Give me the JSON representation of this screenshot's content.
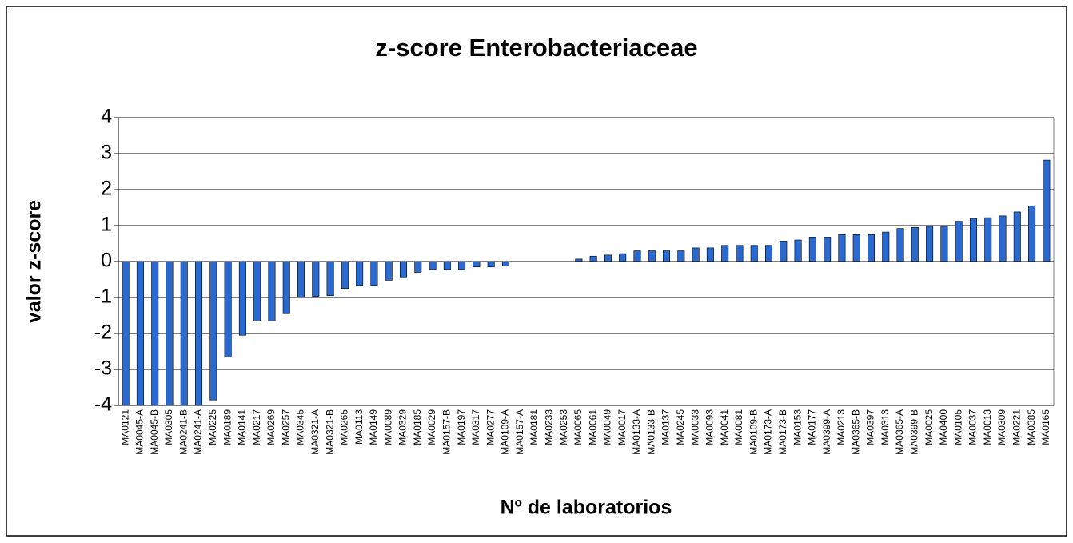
{
  "chart_data": {
    "type": "bar",
    "title": "z-score Enterobacteriaceae",
    "xlabel": "Nº de laboratorios",
    "ylabel": "valor z-score",
    "categories": [
      "MA0121",
      "MA0045-A",
      "MA0045-B",
      "MA0305",
      "MA0241-B",
      "MA0241-A",
      "MA0225",
      "MA0189",
      "MA0141",
      "MA0217",
      "MA0269",
      "MA0257",
      "MA0345",
      "MA0321-A",
      "MA0321-B",
      "MA0265",
      "MA0113",
      "MA0149",
      "MA0089",
      "MA0329",
      "MA0185",
      "MA0029",
      "MA0157-B",
      "MA0197",
      "MA0317",
      "MA0277",
      "MA0109-A",
      "MA0157-A",
      "MA0181",
      "MA0233",
      "MA0253",
      "MA0065",
      "MA0061",
      "MA0049",
      "MA0017",
      "MA0133-A",
      "MA0133-B",
      "MA0137",
      "MA0245",
      "MA0033",
      "MA0093",
      "MA0041",
      "MA0081",
      "MA0109-B",
      "MA0173-A",
      "MA0173-B",
      "MA0153",
      "MA0177",
      "MA0399-A",
      "MA0213",
      "MA0365-B",
      "MA0397",
      "MA0313",
      "MA0365-A",
      "MA0399-B",
      "MA0025",
      "MA0400",
      "MA0105",
      "MA0037",
      "MA0013",
      "MA0309",
      "MA0221",
      "MA0385",
      "MA0165"
    ],
    "values": [
      -4,
      -4,
      -4,
      -4,
      -4,
      -4,
      -3.85,
      -2.65,
      -2.05,
      -1.65,
      -1.65,
      -1.45,
      -1.0,
      -0.97,
      -0.95,
      -0.75,
      -0.68,
      -0.68,
      -0.52,
      -0.45,
      -0.3,
      -0.22,
      -0.22,
      -0.22,
      -0.15,
      -0.15,
      -0.12,
      0,
      0,
      0,
      0,
      0.07,
      0.15,
      0.18,
      0.22,
      0.3,
      0.3,
      0.3,
      0.3,
      0.38,
      0.38,
      0.45,
      0.45,
      0.45,
      0.45,
      0.57,
      0.6,
      0.68,
      0.68,
      0.75,
      0.75,
      0.75,
      0.82,
      0.92,
      0.95,
      0.98,
      0.98,
      1.12,
      1.2,
      1.22,
      1.27,
      1.38,
      1.55,
      2.82
    ],
    "color": "#2a6ad0",
    "ylim": [
      -4,
      4
    ],
    "yticks": [
      -4,
      -3,
      -2,
      -1,
      0,
      1,
      2,
      3,
      4
    ],
    "grid": true
  }
}
